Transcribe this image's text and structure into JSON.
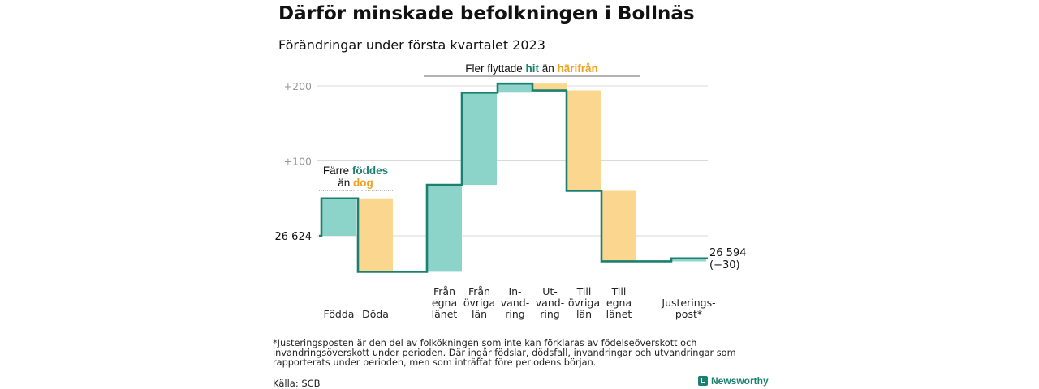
{
  "title": "Därför minskade befolkningen i Bollnäs",
  "subtitle": "Förändringar under första kvartalet 2023",
  "footnote": "*Justeringsposten är den del av folkökningen som inte kan förklaras av födelseöverskott och invandringsöverskott under perioden. Där ingår födslar, dödsfall, invandringar och utvandringar som rapporterats under perioden, men som inträffat före periodens början.",
  "source": "Källa: SCB",
  "brand": "Newsworthy",
  "colors": {
    "line": "#1c8070",
    "increase": "#8cd4c9",
    "decrease": "#fbd68e",
    "grid": "#d9d9d9"
  },
  "chart_data": {
    "type": "waterfall",
    "baseline": 26624,
    "start_label": "26 624",
    "end_label": "26 594",
    "end_change_label": "(−30)",
    "y_ticks": [
      {
        "value": 100,
        "label": "+100"
      },
      {
        "value": 200,
        "label": "+200"
      }
    ],
    "ylim": [
      -50,
      215
    ],
    "steps": [
      {
        "label": [
          "Födda"
        ],
        "value": 50
      },
      {
        "label": [
          "Döda"
        ],
        "value": -98
      },
      {
        "label": [
          "Från",
          "egna",
          "länet"
        ],
        "value": 116
      },
      {
        "label": [
          "Från",
          "övriga",
          "län"
        ],
        "value": 123
      },
      {
        "label": [
          "In-",
          "vand-",
          "ring"
        ],
        "value": 12
      },
      {
        "label": [
          "Ut-",
          "vand-",
          "ring"
        ],
        "value": -9
      },
      {
        "label": [
          "Till",
          "övriga",
          "län"
        ],
        "value": -134
      },
      {
        "label": [
          "Till",
          "egna",
          "länet"
        ],
        "value": -94
      },
      {
        "label": [
          "Justerings-",
          "post*"
        ],
        "value": 4
      }
    ],
    "annotations": [
      {
        "parts": [
          {
            "text": "Färre ",
            "c": "n"
          },
          {
            "text": "föddes",
            "c": "g"
          },
          {
            "text": "\n"
          },
          {
            "text": "än ",
            "c": "n"
          },
          {
            "text": "dog",
            "c": "o"
          }
        ]
      },
      {
        "parts": [
          {
            "text": "Fler flyttade ",
            "c": "n"
          },
          {
            "text": "hit",
            "c": "g"
          },
          {
            "text": " än ",
            "c": "n"
          },
          {
            "text": "härifrån",
            "c": "o"
          }
        ]
      }
    ]
  }
}
